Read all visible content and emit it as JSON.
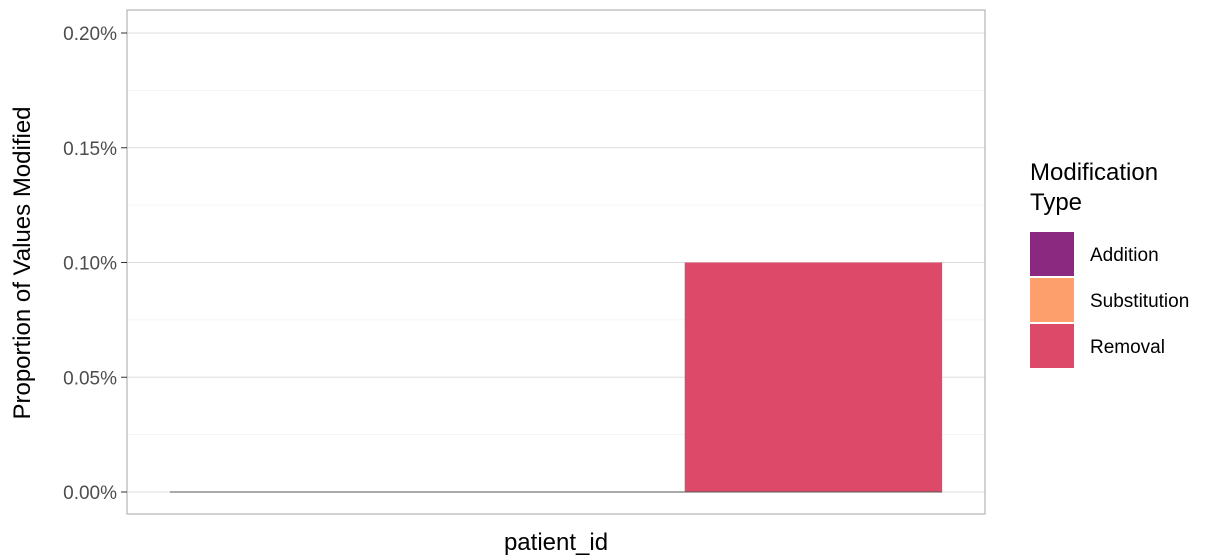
{
  "chart_data": {
    "type": "bar",
    "title": "",
    "xlabel": "",
    "ylabel": "Proportion of Values Modified",
    "ylim": [
      0,
      0.2
    ],
    "y_ticks": [
      0,
      0.05,
      0.1,
      0.15,
      0.2
    ],
    "y_tick_labels": [
      "0.00%",
      "0.05%",
      "0.10%",
      "0.15%",
      "0.20%"
    ],
    "categories": [
      "patient_id"
    ],
    "grid": true,
    "legend": {
      "title_lines": [
        "Modification",
        "Type"
      ],
      "placement": "right"
    },
    "series": [
      {
        "name": "Addition",
        "color": "#8b2981",
        "values": [
          0
        ]
      },
      {
        "name": "Substitution",
        "color": "#fd9f6c",
        "values": [
          0
        ]
      },
      {
        "name": "Removal",
        "color": "#dd4968",
        "values": [
          0.1
        ]
      }
    ]
  }
}
